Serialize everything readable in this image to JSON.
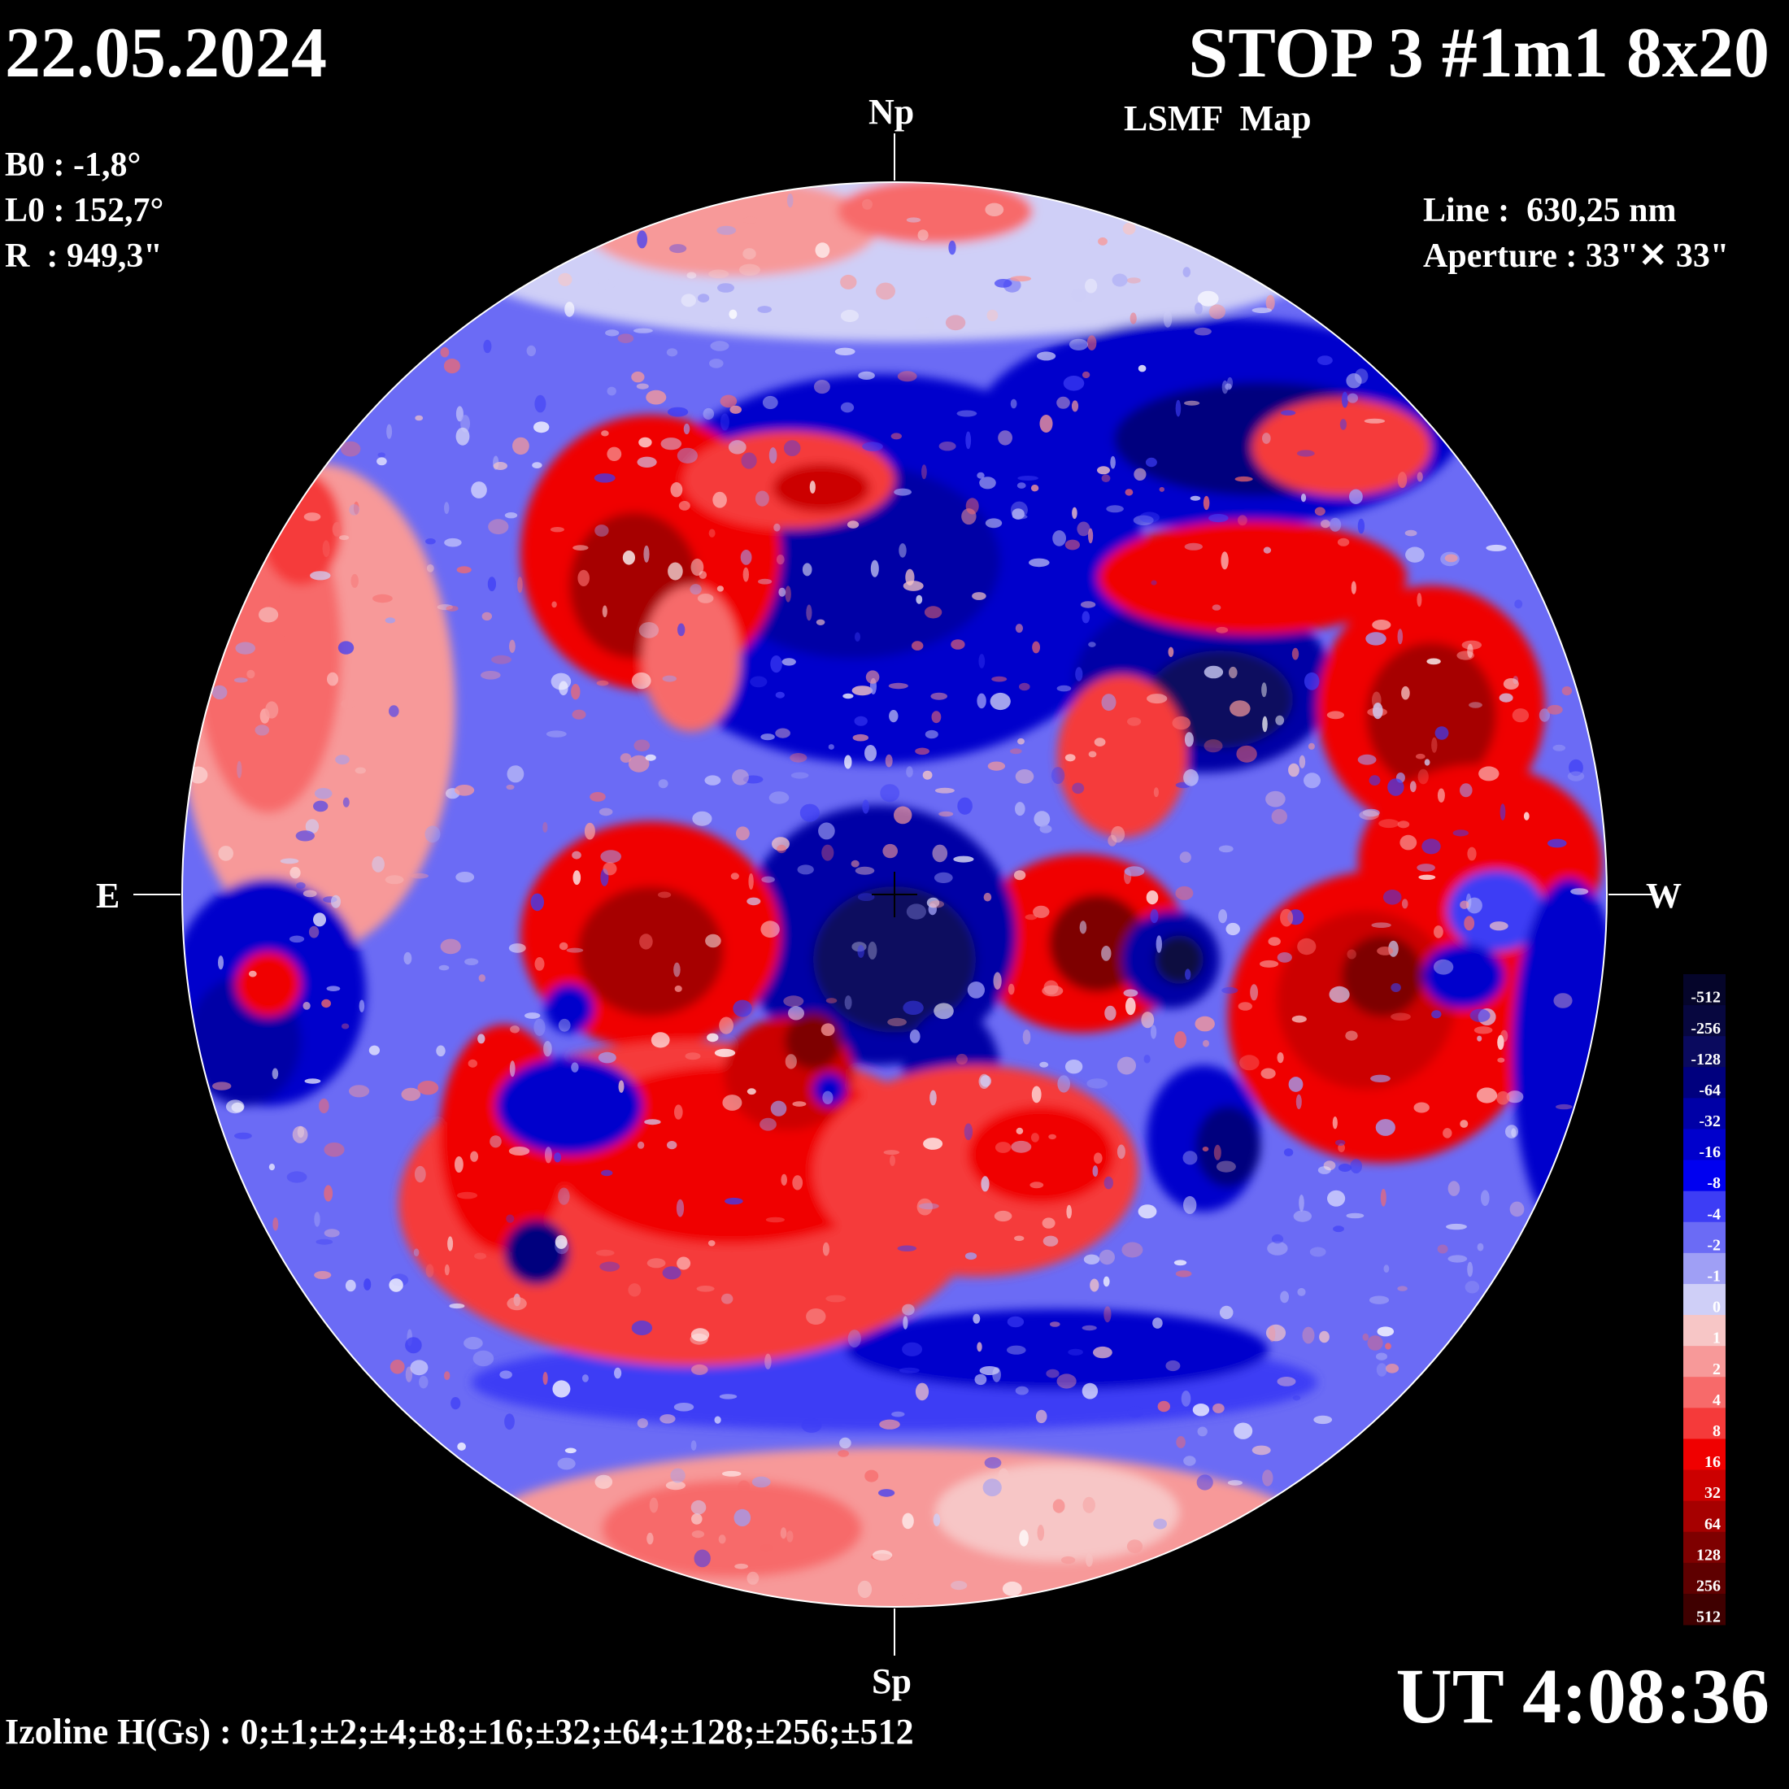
{
  "header": {
    "date": "22.05.2024",
    "title": "STOP 3 #1m1 8x20",
    "subtitle": "LSMF  Map"
  },
  "params": {
    "b0": "B0 : -1,8°",
    "l0": "L0 : 152,7°",
    "r": "R  : 949,3\"",
    "line": "Line :  630,25 nm",
    "aperture": "Aperture : 33\"✕ 33\""
  },
  "compass": {
    "north": "Np",
    "south": "Sp",
    "east": "E",
    "west": "W"
  },
  "footer": {
    "time": "UT 4:08:36",
    "izoline": "Izoline H(Gs) : 0;±1;±2;±4;±8;±16;±32;±64;±128;±256;±512"
  },
  "colors": {
    "background": "#000000",
    "positive": "#ff0000",
    "negative": "#0000ff",
    "zero": "#ffffff",
    "contour": "#ffffff"
  },
  "scale": [
    {
      "label": "-512",
      "color": "#05052a"
    },
    {
      "label": "-256",
      "color": "#07073f"
    },
    {
      "label": "-128",
      "color": "#0a0a5e"
    },
    {
      "label": "-64",
      "color": "#00007e"
    },
    {
      "label": "-32",
      "color": "#0000a6"
    },
    {
      "label": "-16",
      "color": "#0000cc"
    },
    {
      "label": "-8",
      "color": "#0000f0"
    },
    {
      "label": "-4",
      "color": "#3d3df5"
    },
    {
      "label": "-2",
      "color": "#6b6bf5"
    },
    {
      "label": "-1",
      "color": "#9f9ff5"
    },
    {
      "label": "0",
      "color": "#cfcff7"
    },
    {
      "label": "1",
      "color": "#f7c6c6"
    },
    {
      "label": "2",
      "color": "#f79999"
    },
    {
      "label": "4",
      "color": "#f76a6a"
    },
    {
      "label": "8",
      "color": "#f53a3a"
    },
    {
      "label": "16",
      "color": "#f00000"
    },
    {
      "label": "32",
      "color": "#cc0000"
    },
    {
      "label": "64",
      "color": "#a60000"
    },
    {
      "label": "128",
      "color": "#7e0000"
    },
    {
      "label": "256",
      "color": "#5e0000"
    },
    {
      "label": "512",
      "color": "#3f0000"
    }
  ]
}
